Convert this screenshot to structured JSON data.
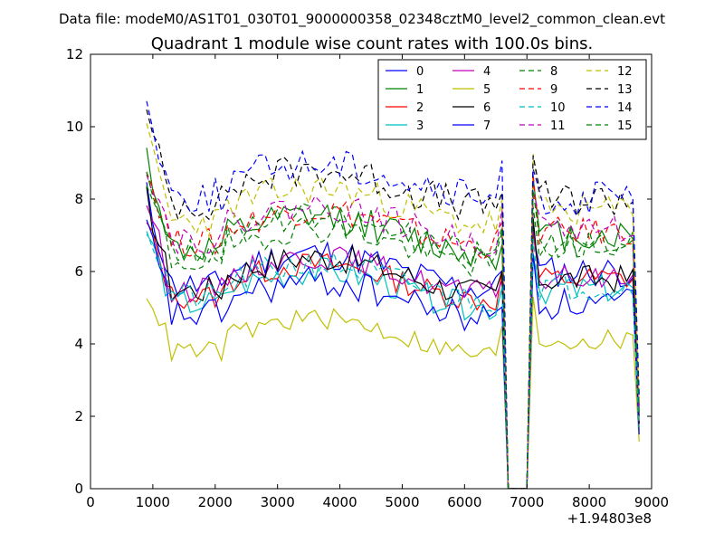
{
  "chart_data": {
    "type": "line",
    "suptitle": "Data file: modeM0/AS1T01_030T01_9000000358_02348cztM0_level2_common_clean.evt",
    "title": "Quadrant 1 module wise count rates with 100.0s bins.",
    "xlabel": "",
    "ylabel": "",
    "x_offset_label": "+1.94803e8",
    "xlim": [
      0,
      9000
    ],
    "ylim": [
      0,
      12
    ],
    "xticks": [
      0,
      1000,
      2000,
      3000,
      4000,
      5000,
      6000,
      7000,
      8000,
      9000
    ],
    "xtick_labels": [
      "0",
      "1000",
      "2000",
      "3000",
      "4000",
      "5000",
      "6000",
      "7000",
      "8000",
      "9000"
    ],
    "yticks": [
      0,
      2,
      4,
      6,
      8,
      10,
      12
    ],
    "ytick_labels": [
      "0",
      "2",
      "4",
      "6",
      "8",
      "10",
      "12"
    ],
    "legend_position": "top-right",
    "legend_columns": 4,
    "x_start": 900,
    "x_step": 100,
    "gap_start": 6700,
    "gap_end": 7000,
    "gap_min": 0.0,
    "x_end": 8800,
    "series": [
      {
        "name": "0",
        "color": "#0000ff",
        "style": "solid",
        "start": 8.1,
        "level": 6.3,
        "post": 6.3,
        "end": 2.0,
        "amp": 0.45,
        "seed": 11
      },
      {
        "name": "1",
        "color": "#008000",
        "style": "solid",
        "start": 9.2,
        "level": 7.3,
        "post": 7.3,
        "end": 2.3,
        "amp": 0.45,
        "seed": 12
      },
      {
        "name": "2",
        "color": "#ff0000",
        "style": "solid",
        "start": 7.3,
        "level": 6.0,
        "post": 6.1,
        "end": 1.7,
        "amp": 0.35,
        "seed": 13
      },
      {
        "name": "3",
        "color": "#00bfbf",
        "style": "solid",
        "start": 7.1,
        "level": 5.8,
        "post": 5.8,
        "end": 1.6,
        "amp": 0.4,
        "seed": 14
      },
      {
        "name": "4",
        "color": "#bf00bf",
        "style": "solid",
        "start": 8.0,
        "level": 6.2,
        "post": 6.1,
        "end": 1.8,
        "amp": 0.35,
        "seed": 15
      },
      {
        "name": "5",
        "color": "#bfbf00",
        "style": "solid",
        "start": 5.5,
        "level": 4.5,
        "post": 4.4,
        "end": 1.3,
        "amp": 0.3,
        "seed": 16
      },
      {
        "name": "6",
        "color": "#000000",
        "style": "solid",
        "start": 8.0,
        "level": 6.2,
        "post": 6.1,
        "end": 1.8,
        "amp": 0.4,
        "seed": 17
      },
      {
        "name": "7",
        "color": "#0000ff",
        "style": "solid",
        "start": 7.2,
        "level": 5.5,
        "post": 5.4,
        "end": 1.5,
        "amp": 0.45,
        "seed": 18
      },
      {
        "name": "8",
        "color": "#008000",
        "style": "dashed",
        "start": 8.3,
        "level": 7.0,
        "post": 7.0,
        "end": 2.1,
        "amp": 0.4,
        "seed": 19
      },
      {
        "name": "9",
        "color": "#ff0000",
        "style": "dashed",
        "start": 8.8,
        "level": 7.5,
        "post": 7.4,
        "end": 2.2,
        "amp": 0.4,
        "seed": 20
      },
      {
        "name": "10",
        "color": "#00bfbf",
        "style": "dashed",
        "start": 7.3,
        "level": 6.0,
        "post": 5.9,
        "end": 1.7,
        "amp": 0.4,
        "seed": 21
      },
      {
        "name": "11",
        "color": "#bf00bf",
        "style": "dashed",
        "start": 9.0,
        "level": 7.6,
        "post": 7.5,
        "end": 2.2,
        "amp": 0.4,
        "seed": 22
      },
      {
        "name": "12",
        "color": "#bfbf00",
        "style": "dashed",
        "start": 9.7,
        "level": 8.1,
        "post": 8.0,
        "end": 2.4,
        "amp": 0.45,
        "seed": 23
      },
      {
        "name": "13",
        "color": "#000000",
        "style": "dashed",
        "start": 10.2,
        "level": 8.6,
        "post": 8.3,
        "end": 2.5,
        "amp": 0.5,
        "seed": 24
      },
      {
        "name": "14",
        "color": "#0000ff",
        "style": "dashed",
        "start": 10.6,
        "level": 8.8,
        "post": 8.3,
        "end": 2.6,
        "amp": 0.5,
        "seed": 25
      },
      {
        "name": "15",
        "color": "#008000",
        "style": "dashed",
        "start": 8.8,
        "level": 7.3,
        "post": 7.1,
        "end": 2.1,
        "amp": 0.4,
        "seed": 26
      }
    ]
  }
}
